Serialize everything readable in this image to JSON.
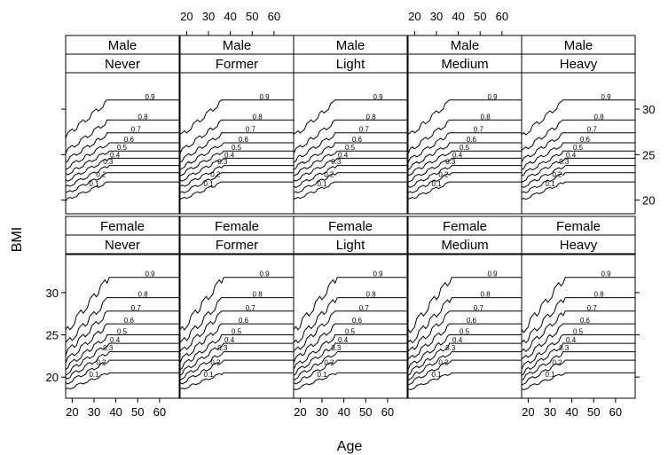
{
  "chart_data": {
    "type": "contour",
    "xlabel": "Age",
    "ylabel": "BMI",
    "xlim": [
      17,
      69
    ],
    "x_ticks": [
      20,
      30,
      40,
      50,
      60
    ],
    "ylim_top_row": [
      18.5,
      34
    ],
    "ylim_bottom_row": [
      17.5,
      34.5
    ],
    "y_ticks": [
      20,
      25,
      30
    ],
    "grid": false,
    "contour_levels": [
      "0.1",
      "0.2",
      "0.3",
      "0.4",
      "0.5",
      "0.6",
      "0.7",
      "0.8",
      "0.9"
    ],
    "panels": [
      {
        "strip1": "Male",
        "strip2": "Never"
      },
      {
        "strip1": "Male",
        "strip2": "Former"
      },
      {
        "strip1": "Male",
        "strip2": "Light"
      },
      {
        "strip1": "Male",
        "strip2": "Medium"
      },
      {
        "strip1": "Male",
        "strip2": "Heavy"
      },
      {
        "strip1": "Female",
        "strip2": "Never"
      },
      {
        "strip1": "Female",
        "strip2": "Former"
      },
      {
        "strip1": "Female",
        "strip2": "Light"
      },
      {
        "strip1": "Female",
        "strip2": "Medium"
      },
      {
        "strip1": "Female",
        "strip2": "Heavy"
      }
    ],
    "curves": {
      "male": [
        {
          "level": "0.1",
          "bmi_start": 20.0,
          "bmi_end": 22.0
        },
        {
          "level": "0.2",
          "bmi_start": 20.7,
          "bmi_end": 23.0
        },
        {
          "level": "0.3",
          "bmi_start": 21.4,
          "bmi_end": 23.8
        },
        {
          "level": "0.4",
          "bmi_start": 22.1,
          "bmi_end": 24.6
        },
        {
          "level": "0.5",
          "bmi_start": 22.8,
          "bmi_end": 25.4
        },
        {
          "level": "0.6",
          "bmi_start": 23.5,
          "bmi_end": 26.3
        },
        {
          "level": "0.7",
          "bmi_start": 24.3,
          "bmi_end": 27.4
        },
        {
          "level": "0.8",
          "bmi_start": 25.3,
          "bmi_end": 28.8
        },
        {
          "level": "0.9",
          "bmi_start": 27.0,
          "bmi_end": 31.0
        }
      ],
      "female": [
        {
          "level": "0.1",
          "bmi_start": 18.5,
          "bmi_end": 20.5
        },
        {
          "level": "0.2",
          "bmi_start": 19.2,
          "bmi_end": 22.0
        },
        {
          "level": "0.3",
          "bmi_start": 19.8,
          "bmi_end": 23.0
        },
        {
          "level": "0.4",
          "bmi_start": 20.4,
          "bmi_end": 24.0
        },
        {
          "level": "0.5",
          "bmi_start": 21.1,
          "bmi_end": 25.0
        },
        {
          "level": "0.6",
          "bmi_start": 21.9,
          "bmi_end": 26.3
        },
        {
          "level": "0.7",
          "bmi_start": 22.8,
          "bmi_end": 27.8
        },
        {
          "level": "0.8",
          "bmi_start": 23.8,
          "bmi_end": 29.4
        },
        {
          "level": "0.9",
          "bmi_start": 25.3,
          "bmi_end": 31.8
        }
      ]
    }
  }
}
